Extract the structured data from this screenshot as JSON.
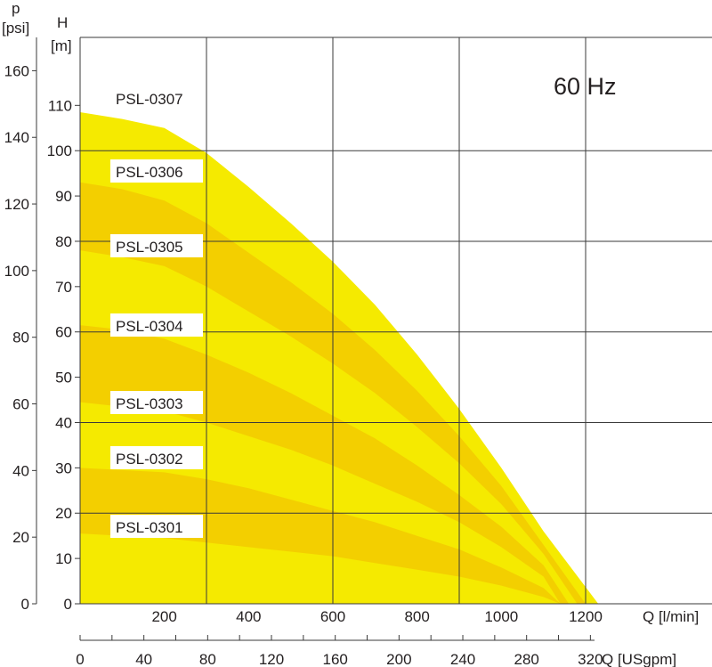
{
  "chart_data": {
    "type": "area",
    "frequency_label": "60 Hz",
    "left_axis": {
      "label": "p",
      "unit": "[psi]",
      "range": [
        0,
        170
      ],
      "ticks": [
        "0",
        "20",
        "40",
        "60",
        "80",
        "100",
        "120",
        "140",
        "160"
      ]
    },
    "head_axis": {
      "label": "H",
      "unit": "[m]",
      "range": [
        0,
        125
      ],
      "ticks": [
        "0",
        "10",
        "20",
        "30",
        "40",
        "50",
        "60",
        "70",
        "80",
        "90",
        "100",
        "110"
      ]
    },
    "x_axis": {
      "label": "Q [l/min]",
      "range": [
        0,
        1500
      ],
      "ticks": [
        "200",
        "400",
        "600",
        "800",
        "1000",
        "1200"
      ]
    },
    "x2_axis": {
      "label": "Q [USgpm]",
      "ticks": [
        "0",
        "40",
        "80",
        "120",
        "160",
        "200",
        "240",
        "280",
        "320"
      ]
    },
    "grid_x": [
      300,
      600,
      900,
      1200
    ],
    "grid_y": [
      0,
      20,
      40,
      60,
      80,
      100
    ],
    "series": [
      {
        "name": "PSL-0307",
        "points": [
          [
            0,
            108.5
          ],
          [
            100,
            107
          ],
          [
            200,
            105
          ],
          [
            300,
            99.5
          ],
          [
            400,
            92
          ],
          [
            500,
            84
          ],
          [
            600,
            75.5
          ],
          [
            700,
            66
          ],
          [
            800,
            55
          ],
          [
            900,
            43
          ],
          [
            1000,
            30
          ],
          [
            1100,
            16
          ],
          [
            1230,
            0
          ]
        ],
        "color": "#f5ea00"
      },
      {
        "name": "PSL-0306",
        "points": [
          [
            0,
            93
          ],
          [
            100,
            91.5
          ],
          [
            200,
            89
          ],
          [
            300,
            84
          ],
          [
            400,
            77.5
          ],
          [
            500,
            71
          ],
          [
            600,
            64
          ],
          [
            700,
            56
          ],
          [
            800,
            47
          ],
          [
            900,
            37
          ],
          [
            1000,
            26
          ],
          [
            1100,
            13
          ],
          [
            1200,
            0
          ]
        ],
        "color": "#f3cf00"
      },
      {
        "name": "PSL-0305",
        "points": [
          [
            0,
            78
          ],
          [
            100,
            76.5
          ],
          [
            200,
            74.5
          ],
          [
            300,
            70
          ],
          [
            400,
            64.5
          ],
          [
            500,
            59
          ],
          [
            600,
            53
          ],
          [
            700,
            46.5
          ],
          [
            800,
            39
          ],
          [
            900,
            31
          ],
          [
            1000,
            22
          ],
          [
            1100,
            11
          ],
          [
            1180,
            0
          ]
        ],
        "color": "#f5ea00"
      },
      {
        "name": "PSL-0304",
        "points": [
          [
            0,
            61.5
          ],
          [
            100,
            60.5
          ],
          [
            200,
            58.5
          ],
          [
            300,
            55
          ],
          [
            400,
            51
          ],
          [
            500,
            46.5
          ],
          [
            600,
            41.5
          ],
          [
            700,
            36.5
          ],
          [
            800,
            30.5
          ],
          [
            900,
            24
          ],
          [
            1000,
            17
          ],
          [
            1100,
            8.5
          ],
          [
            1160,
            0
          ]
        ],
        "color": "#f3cf00"
      },
      {
        "name": "PSL-0303",
        "points": [
          [
            0,
            44.5
          ],
          [
            100,
            43.5
          ],
          [
            200,
            42.5
          ],
          [
            300,
            40
          ],
          [
            400,
            37
          ],
          [
            500,
            34
          ],
          [
            600,
            30.5
          ],
          [
            700,
            26.5
          ],
          [
            800,
            22.5
          ],
          [
            900,
            18
          ],
          [
            1000,
            12.5
          ],
          [
            1100,
            6
          ],
          [
            1140,
            0
          ]
        ],
        "color": "#f5ea00"
      },
      {
        "name": "PSL-0302",
        "points": [
          [
            0,
            30
          ],
          [
            100,
            29.5
          ],
          [
            200,
            29
          ],
          [
            300,
            27.5
          ],
          [
            400,
            25.5
          ],
          [
            500,
            23
          ],
          [
            600,
            20.5
          ],
          [
            700,
            18
          ],
          [
            800,
            15
          ],
          [
            900,
            12
          ],
          [
            1000,
            8
          ],
          [
            1100,
            3.5
          ],
          [
            1140,
            0
          ]
        ],
        "color": "#f3cf00"
      },
      {
        "name": "PSL-0301",
        "points": [
          [
            0,
            15.5
          ],
          [
            100,
            15
          ],
          [
            200,
            14.5
          ],
          [
            300,
            13.5
          ],
          [
            400,
            12.5
          ],
          [
            500,
            11.5
          ],
          [
            600,
            10.5
          ],
          [
            700,
            9
          ],
          [
            800,
            7.5
          ],
          [
            900,
            6
          ],
          [
            1000,
            4
          ],
          [
            1100,
            1.5
          ],
          [
            1140,
            0
          ]
        ],
        "color": "#f5ea00"
      }
    ]
  }
}
